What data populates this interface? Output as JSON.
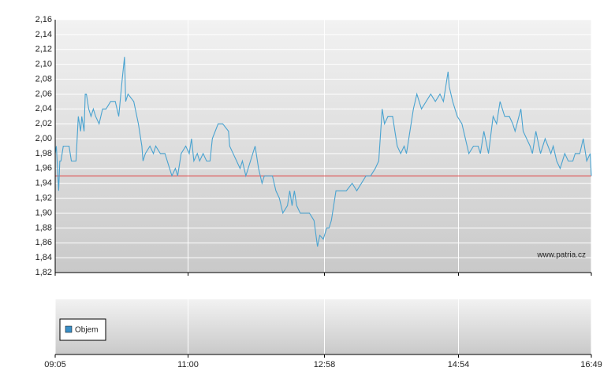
{
  "chart_data": {
    "type": "line",
    "x": [
      545,
      546,
      548,
      549,
      550,
      552,
      557,
      559,
      563,
      565,
      567,
      568,
      570,
      571,
      572,
      574,
      576,
      578,
      580,
      583,
      586,
      589,
      593,
      597,
      600,
      603,
      605,
      606,
      608,
      613,
      617,
      620,
      621,
      623,
      627,
      630,
      632,
      636,
      640,
      644,
      646,
      649,
      651,
      654,
      658,
      661,
      663,
      665,
      668,
      670,
      673,
      676,
      679,
      681,
      686,
      690,
      695,
      696,
      699,
      702,
      705,
      707,
      710,
      714,
      718,
      721,
      724,
      726,
      733,
      736,
      739,
      742,
      746,
      748,
      750,
      752,
      754,
      757,
      759,
      765,
      769,
      772,
      774,
      777,
      780,
      782,
      784,
      788,
      797,
      802,
      806,
      810,
      814,
      818,
      822,
      825,
      828,
      829,
      830,
      833,
      837,
      841,
      844,
      847,
      849,
      852,
      855,
      858,
      862,
      866,
      870,
      874,
      878,
      881,
      885,
      886,
      889,
      893,
      897,
      900,
      903,
      907,
      911,
      913,
      916,
      920,
      924,
      927,
      930,
      934,
      938,
      941,
      943,
      948,
      950,
      953,
      956,
      958,
      961,
      965,
      969,
      974,
      976,
      979,
      982,
      986,
      989,
      993,
      995,
      999,
      1002,
      1005,
      1008,
      1009
    ],
    "series": [
      {
        "color": "#4aa3d0",
        "values": [
          1.98,
          1.99,
          1.93,
          1.97,
          1.97,
          1.99,
          1.99,
          1.97,
          1.97,
          2.03,
          2.01,
          2.03,
          2.01,
          2.06,
          2.06,
          2.04,
          2.03,
          2.04,
          2.03,
          2.02,
          2.04,
          2.04,
          2.05,
          2.05,
          2.03,
          2.08,
          2.11,
          2.05,
          2.06,
          2.05,
          2.02,
          1.99,
          1.97,
          1.98,
          1.99,
          1.98,
          1.99,
          1.98,
          1.98,
          1.96,
          1.95,
          1.96,
          1.95,
          1.98,
          1.99,
          1.98,
          2.0,
          1.97,
          1.98,
          1.97,
          1.98,
          1.97,
          1.97,
          2.0,
          2.02,
          2.02,
          2.01,
          1.99,
          1.98,
          1.97,
          1.96,
          1.97,
          1.95,
          1.97,
          1.99,
          1.96,
          1.94,
          1.95,
          1.95,
          1.93,
          1.92,
          1.9,
          1.91,
          1.93,
          1.91,
          1.93,
          1.91,
          1.9,
          1.9,
          1.9,
          1.89,
          1.855,
          1.87,
          1.865,
          1.88,
          1.88,
          1.89,
          1.93,
          1.93,
          1.94,
          1.93,
          1.94,
          1.95,
          1.95,
          1.96,
          1.97,
          2.04,
          2.03,
          2.02,
          2.03,
          2.03,
          1.99,
          1.98,
          1.99,
          1.98,
          2.01,
          2.04,
          2.06,
          2.04,
          2.05,
          2.06,
          2.05,
          2.06,
          2.05,
          2.09,
          2.07,
          2.05,
          2.03,
          2.02,
          2.0,
          1.98,
          1.99,
          1.99,
          1.98,
          2.01,
          1.98,
          2.03,
          2.02,
          2.05,
          2.03,
          2.03,
          2.02,
          2.01,
          2.04,
          2.01,
          2.0,
          1.99,
          1.98,
          2.01,
          1.98,
          2.0,
          1.98,
          1.99,
          1.97,
          1.96,
          1.98,
          1.97,
          1.97,
          1.98,
          1.98,
          2.0,
          1.97,
          1.98,
          1.95
        ]
      }
    ],
    "reference_line": {
      "value": 1.95,
      "color": "#e04040"
    },
    "xlim": [
      545,
      1009
    ],
    "xticks": [
      {
        "value": 545,
        "label": "09:05"
      },
      {
        "value": 660,
        "label": "11:00"
      },
      {
        "value": 778,
        "label": "12:58"
      },
      {
        "value": 894,
        "label": "14:54"
      },
      {
        "value": 1009,
        "label": "16:49"
      }
    ],
    "ylim": [
      1.82,
      2.16
    ],
    "yticks": [
      {
        "value": 1.82,
        "label": "1,82"
      },
      {
        "value": 1.84,
        "label": "1,84"
      },
      {
        "value": 1.86,
        "label": "1,86"
      },
      {
        "value": 1.88,
        "label": "1,88"
      },
      {
        "value": 1.9,
        "label": "1,90"
      },
      {
        "value": 1.92,
        "label": "1,92"
      },
      {
        "value": 1.94,
        "label": "1,94"
      },
      {
        "value": 1.96,
        "label": "1,96"
      },
      {
        "value": 1.98,
        "label": "1,98"
      },
      {
        "value": 2.0,
        "label": "2,00"
      },
      {
        "value": 2.02,
        "label": "2,02"
      },
      {
        "value": 2.04,
        "label": "2,04"
      },
      {
        "value": 2.06,
        "label": "2,06"
      },
      {
        "value": 2.08,
        "label": "2,08"
      },
      {
        "value": 2.1,
        "label": "2,10"
      },
      {
        "value": 2.12,
        "label": "2,12"
      },
      {
        "value": 2.14,
        "label": "2,14"
      },
      {
        "value": 2.16,
        "label": "2,16"
      }
    ],
    "grid": true,
    "watermark": "www.patria.cz",
    "volume_legend": {
      "name": "Objem",
      "color": "#3a8fc7"
    }
  }
}
